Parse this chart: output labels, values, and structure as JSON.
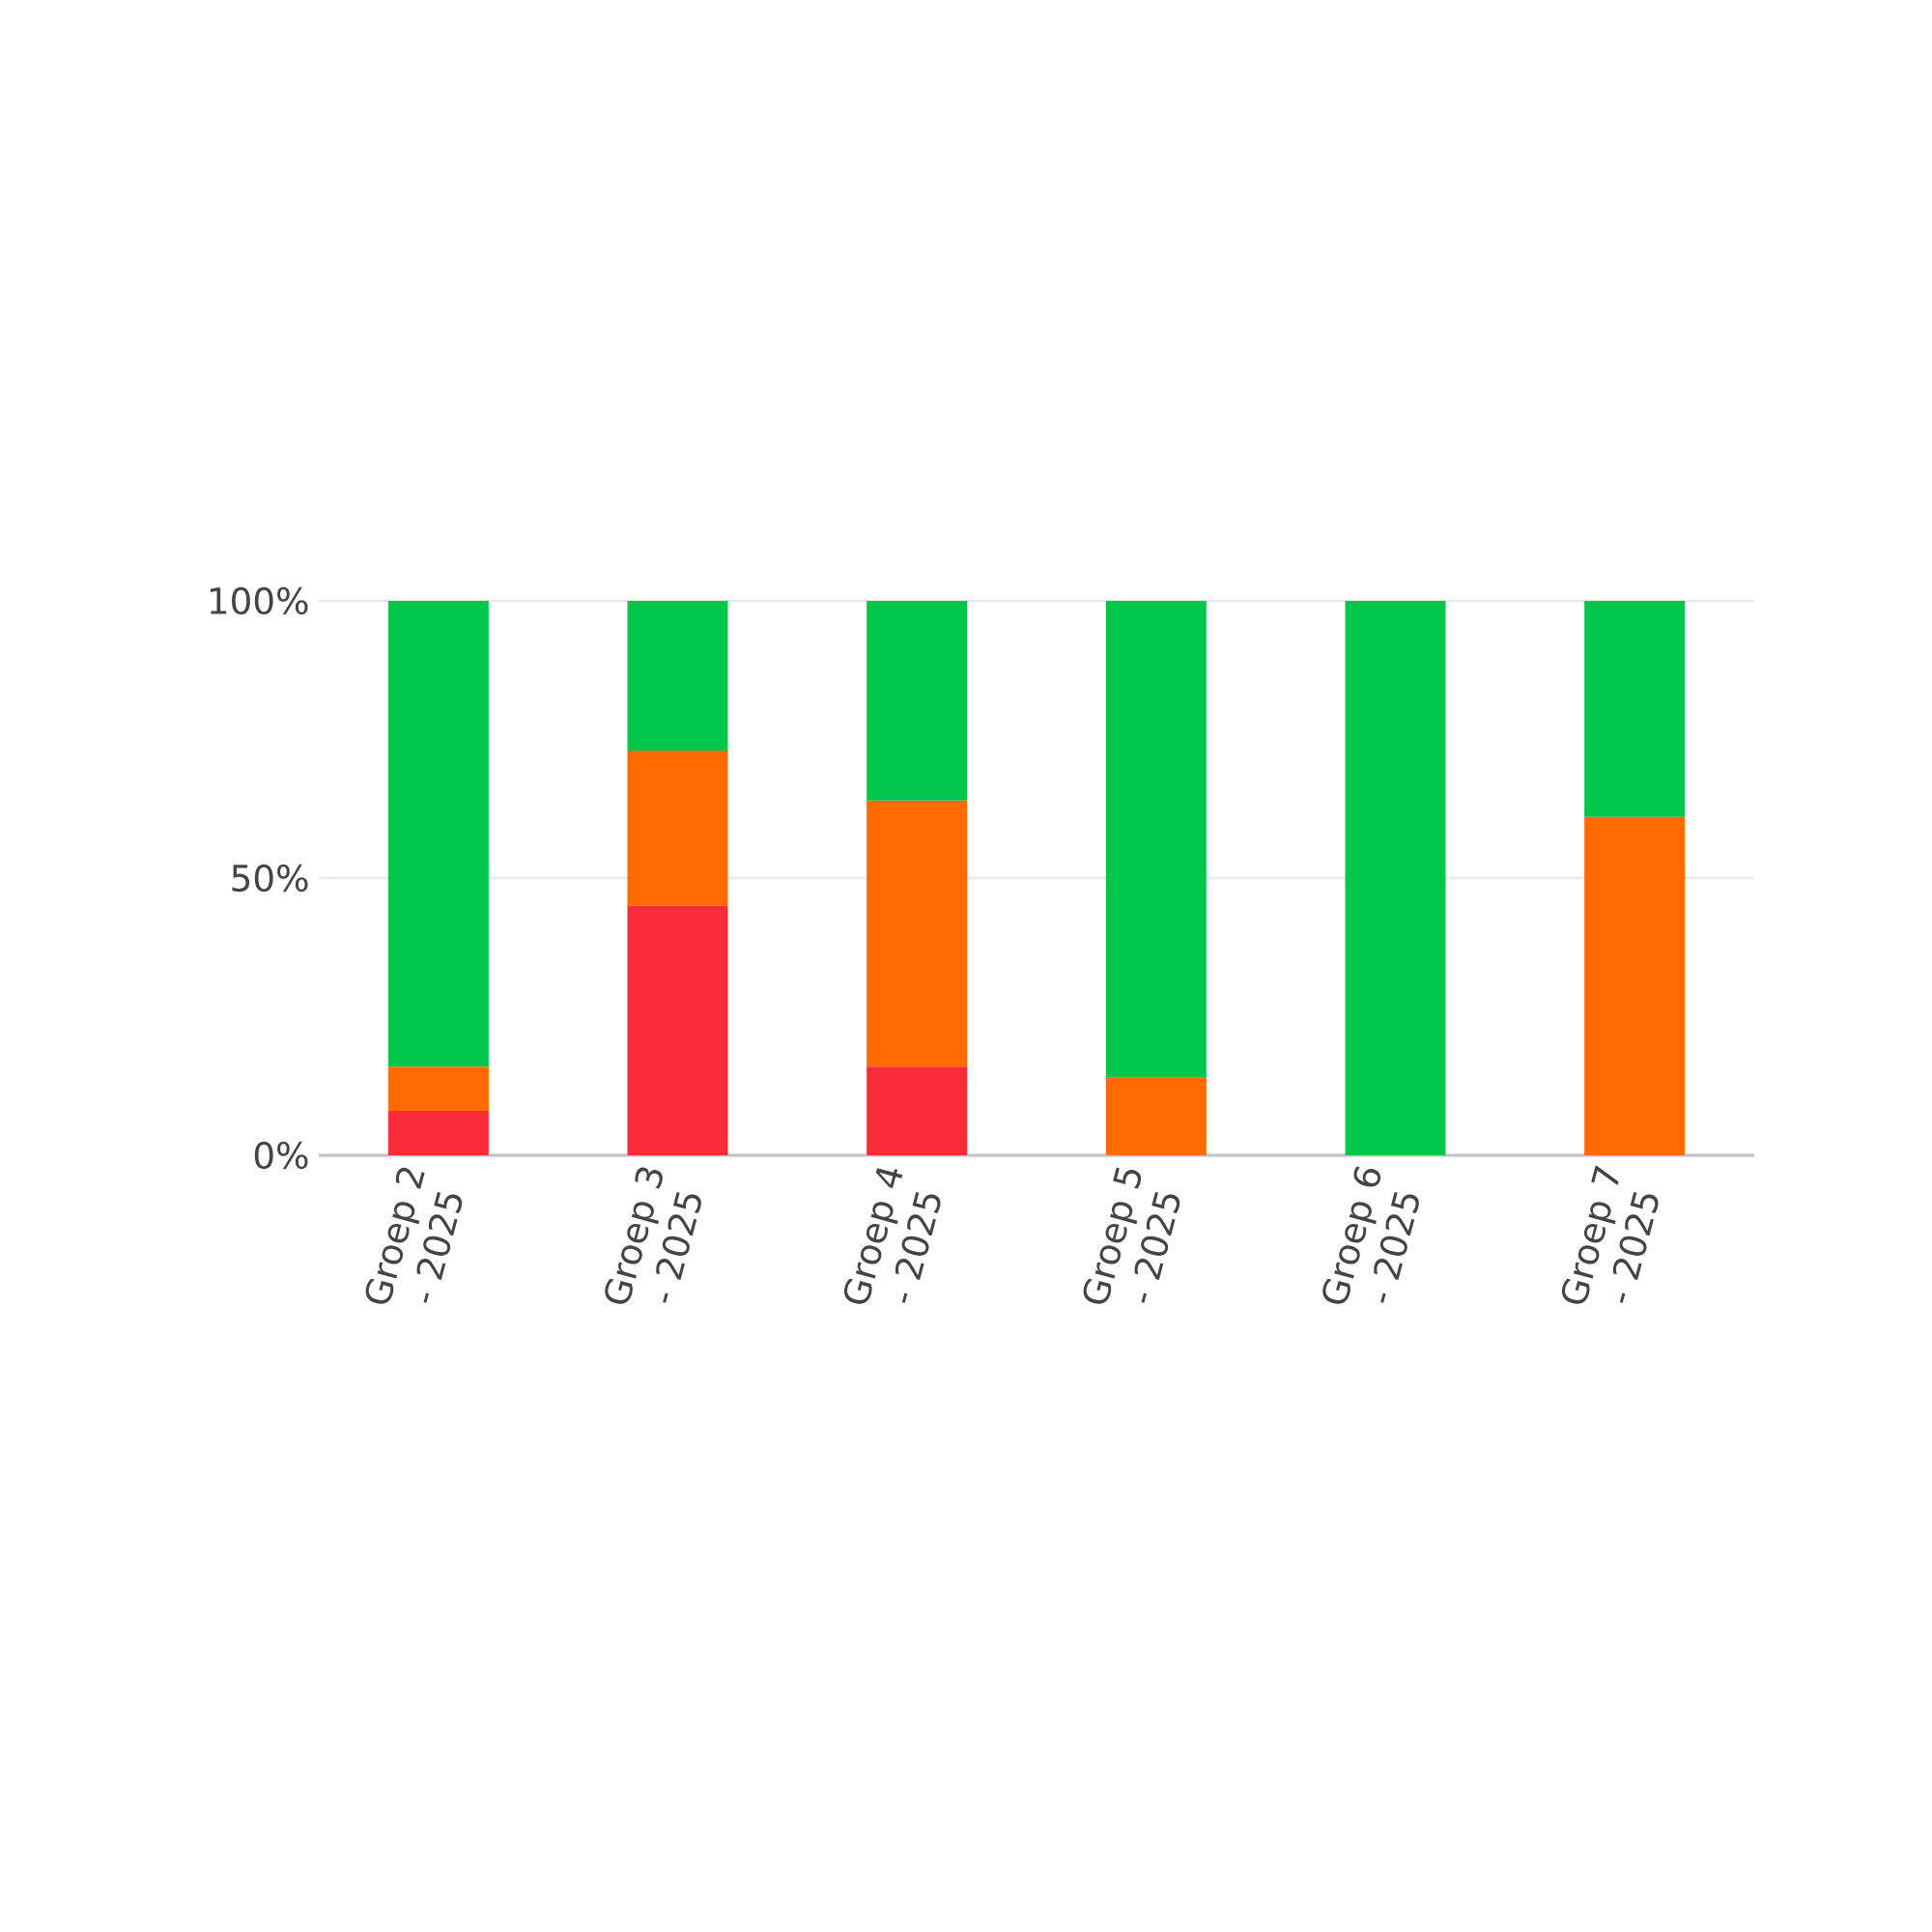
{
  "chart_data": {
    "type": "bar",
    "stacked": true,
    "categories": [
      "Groep 2 - 2025",
      "Groep 3 - 2025",
      "Groep 4 - 2025",
      "Groep 5 - 2025",
      "Groep 6 - 2025",
      "Groep 7 - 2025"
    ],
    "series": [
      {
        "color": "#fb2c3a",
        "values": [
          8,
          45,
          16,
          0,
          0,
          0
        ]
      },
      {
        "color": "#ff6a00",
        "values": [
          8,
          28,
          48,
          14,
          0,
          61
        ]
      },
      {
        "color": "#00c74b",
        "values": [
          84,
          27,
          36,
          86,
          100,
          39
        ]
      }
    ],
    "ylim": [
      0,
      100
    ],
    "yticks": [
      {
        "value": 0,
        "label": "0%"
      },
      {
        "value": 50,
        "label": "50%"
      },
      {
        "value": 100,
        "label": "100%"
      }
    ],
    "grid": "y"
  }
}
